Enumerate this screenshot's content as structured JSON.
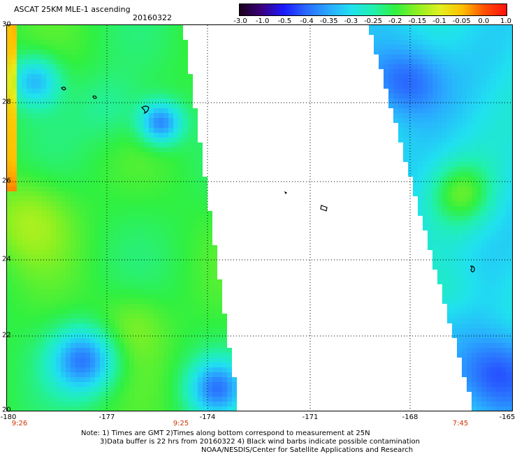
{
  "header": {
    "title": "ASCAT 25KM MLE-1 ascending",
    "date": "20160322"
  },
  "colorbar": {
    "ticks": [
      "-3.0",
      "-1.0",
      "-0.5",
      "-0.4",
      "-0.35",
      "-0.3",
      "-0.25",
      "-0.2",
      "-0.15",
      "-0.1",
      "-0.05",
      "0.0",
      "1.0"
    ],
    "colors": [
      "#1a001a",
      "#3a0080",
      "#1a1aff",
      "#2a6aff",
      "#2aa8ff",
      "#20e0f0",
      "#20f0b0",
      "#30f040",
      "#90f020",
      "#e0f020",
      "#ffc000",
      "#ff5000",
      "#ff1010"
    ]
  },
  "map": {
    "lat_labels": [
      "30",
      "28",
      "26",
      "24",
      "22",
      "20"
    ],
    "lon_labels": [
      "-180",
      "-177",
      "-174",
      "-171",
      "-168",
      "-165"
    ],
    "time_labels": [
      "9:26",
      "9:25",
      "7:45"
    ]
  },
  "notes": {
    "line1": "Note: 1) Times are GMT 2)Times along bottom correspond to measurement at 25N",
    "line2": "3)Data buffer is 22 hrs from 20160322 4) Black wind barbs indicate possible contamination",
    "line3": "NOAA/NESDIS/Center for Satellite Applications and Research"
  }
}
